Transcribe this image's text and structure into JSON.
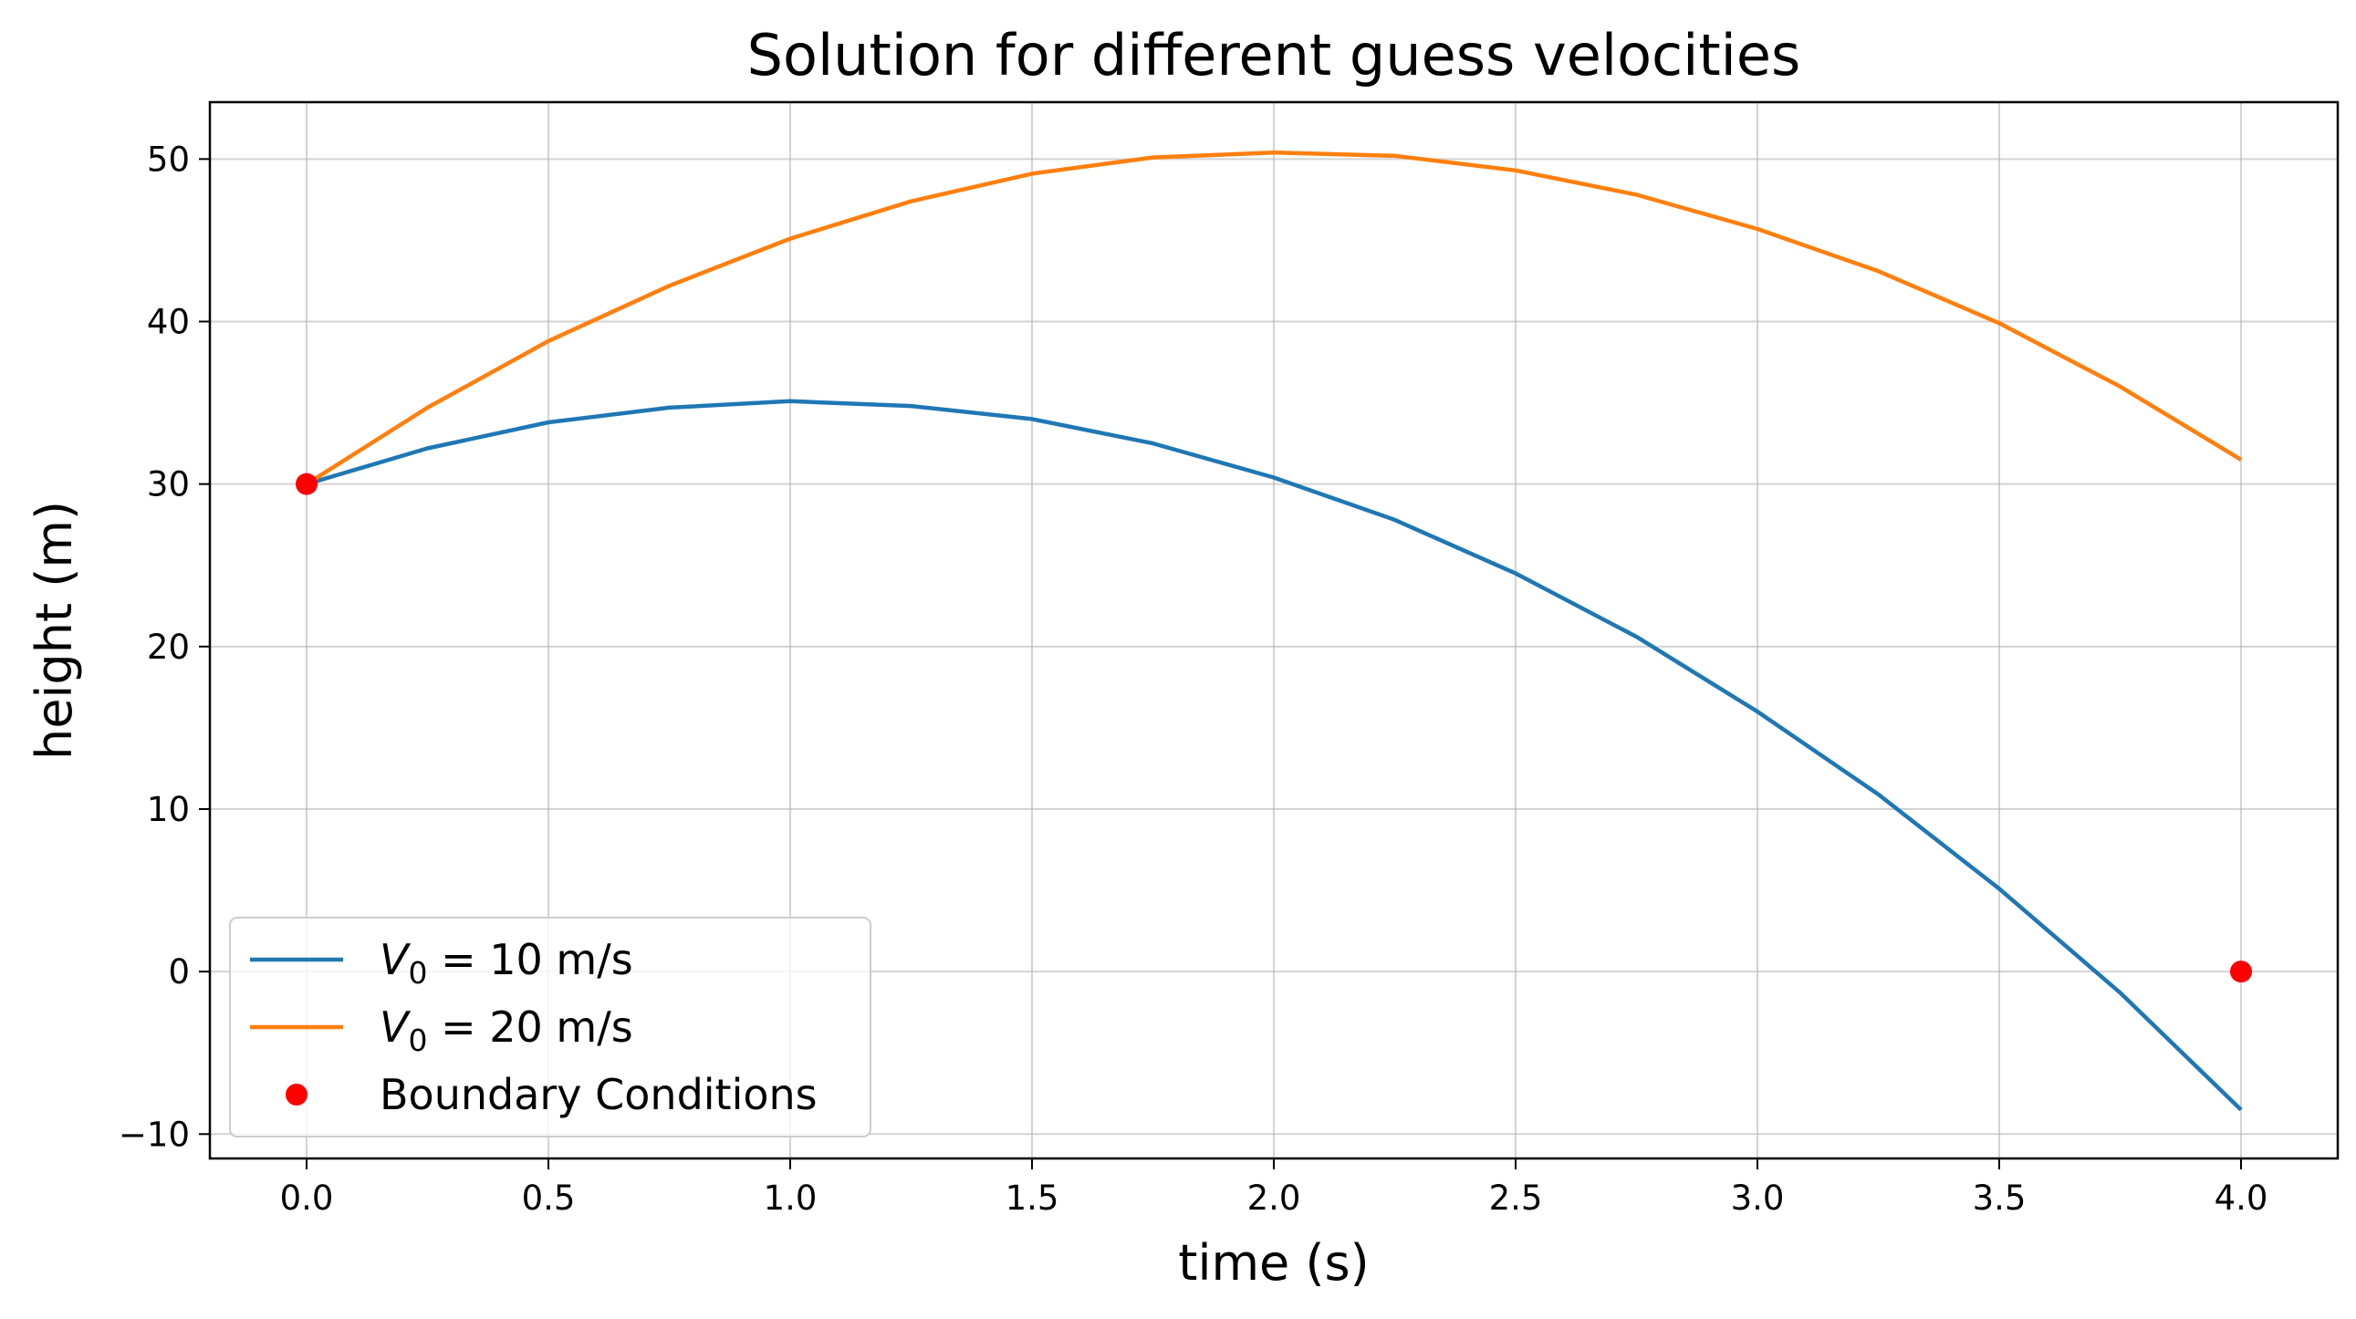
{
  "chart_data": {
    "type": "line",
    "title": "Solution for different guess velocities",
    "xlabel": "time (s)",
    "ylabel": "height (m)",
    "xlim": [
      -0.2,
      4.2
    ],
    "ylim": [
      -11.5,
      53.5
    ],
    "xticks": [
      0.0,
      0.5,
      1.0,
      1.5,
      2.0,
      2.5,
      3.0,
      3.5,
      4.0
    ],
    "xtick_labels": [
      "0.0",
      "0.5",
      "1.0",
      "1.5",
      "2.0",
      "2.5",
      "3.0",
      "3.5",
      "4.0"
    ],
    "yticks": [
      -10,
      0,
      10,
      20,
      30,
      40,
      50
    ],
    "ytick_labels": [
      "−10",
      "0",
      "10",
      "20",
      "30",
      "40",
      "50"
    ],
    "grid": true,
    "legend_position": "lower-left",
    "series": [
      {
        "name_base": "V",
        "name_sub": "0",
        "name_rest": " = 10 m/s",
        "kind": "line",
        "color": "#1f77b4",
        "x": [
          0.0,
          0.25,
          0.5,
          0.75,
          1.0,
          1.25,
          1.5,
          1.75,
          2.0,
          2.25,
          2.5,
          2.75,
          3.0,
          3.25,
          3.5,
          3.75,
          4.0
        ],
        "y": [
          30.0,
          32.2,
          33.8,
          34.7,
          35.1,
          34.8,
          34.0,
          32.5,
          30.4,
          27.8,
          24.5,
          20.6,
          16.0,
          10.9,
          5.1,
          -1.3,
          -8.5
        ]
      },
      {
        "name_base": "V",
        "name_sub": "0",
        "name_rest": " = 20 m/s",
        "kind": "line",
        "color": "#ff7f0e",
        "x": [
          0.0,
          0.25,
          0.5,
          0.75,
          1.0,
          1.25,
          1.5,
          1.75,
          2.0,
          2.25,
          2.5,
          2.75,
          3.0,
          3.25,
          3.5,
          3.75,
          4.0
        ],
        "y": [
          30.0,
          34.7,
          38.8,
          42.2,
          45.1,
          47.4,
          49.1,
          50.1,
          50.4,
          50.2,
          49.3,
          47.8,
          45.7,
          43.1,
          39.9,
          36.0,
          31.5
        ]
      },
      {
        "name": "Boundary Conditions",
        "kind": "points",
        "color": "#ff0000",
        "x": [
          0.0,
          4.0
        ],
        "y": [
          30.0,
          0.0
        ]
      }
    ]
  }
}
